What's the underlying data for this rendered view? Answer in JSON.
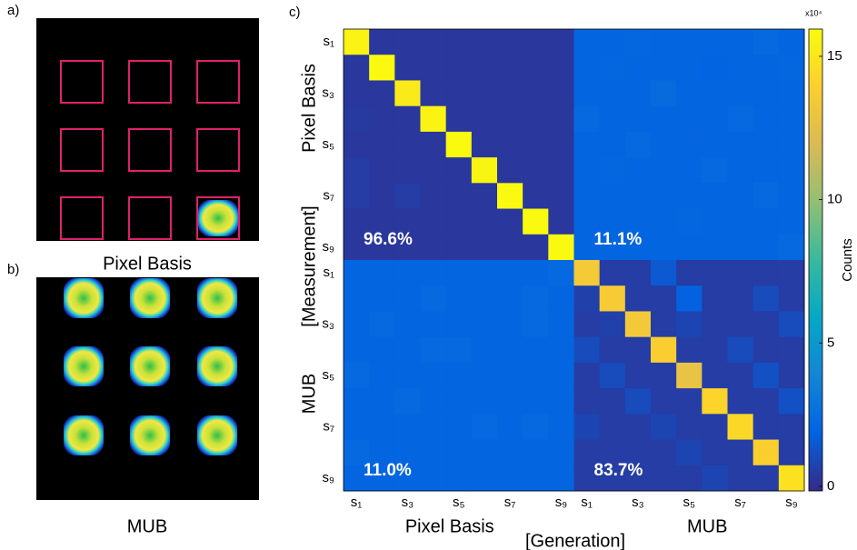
{
  "panel_a": {
    "label": "a)",
    "caption": "Pixel Basis"
  },
  "panel_b": {
    "label": "b)",
    "caption": "MUB"
  },
  "chart_data": {
    "type": "heatmap",
    "panel_label": "c)",
    "row_labels": [
      "s₁",
      null,
      "s₃",
      null,
      "s₅",
      null,
      "s₇",
      null,
      "s₉",
      "s₁",
      null,
      "s₃",
      null,
      "s₅",
      null,
      "s₇",
      null,
      "s₉"
    ],
    "col_labels": [
      "s₁",
      null,
      "s₃",
      null,
      "s₅",
      null,
      "s₇",
      null,
      "s₉",
      "s₁",
      null,
      "s₃",
      null,
      "s₅",
      null,
      "s₇",
      null,
      "s₉"
    ],
    "row_groups": [
      "Pixel Basis",
      "MUB"
    ],
    "col_groups": [
      "Pixel Basis",
      "MUB"
    ],
    "y_label": "[Measurement]",
    "x_label": "[Generation]",
    "annotations": [
      "96.6%",
      "11.1%",
      "11.0%",
      "83.7%"
    ],
    "colorbar_label": "Counts",
    "colorbar_multiplier": "x10⁴",
    "colormap": "parula",
    "zlim": [
      -0.16,
      15.95
    ],
    "zticks": [
      0,
      5,
      10,
      15
    ],
    "z": [
      [
        15.6,
        0.3,
        0.3,
        0.3,
        0.3,
        0.3,
        0.3,
        0.3,
        0.3,
        2.0,
        2.0,
        2.1,
        2.0,
        2.0,
        2.0,
        2.0,
        2.2,
        2.0
      ],
      [
        0.3,
        15.9,
        0.3,
        0.3,
        0.3,
        0.3,
        0.3,
        0.3,
        0.3,
        2.0,
        2.1,
        2.0,
        2.0,
        2.0,
        1.9,
        2.0,
        2.0,
        2.1
      ],
      [
        0.3,
        0.3,
        15.2,
        0.3,
        0.3,
        0.3,
        0.3,
        0.3,
        0.3,
        2.0,
        2.0,
        2.0,
        2.3,
        2.0,
        2.0,
        2.0,
        2.0,
        2.0
      ],
      [
        0.4,
        0.3,
        0.3,
        15.6,
        0.3,
        0.3,
        0.3,
        0.3,
        0.3,
        2.2,
        2.0,
        2.0,
        2.0,
        2.0,
        2.0,
        2.2,
        2.0,
        2.0
      ],
      [
        0.3,
        0.3,
        0.3,
        0.3,
        15.9,
        0.3,
        0.3,
        0.3,
        0.3,
        2.0,
        2.0,
        2.2,
        2.0,
        2.0,
        2.0,
        2.0,
        2.0,
        2.0
      ],
      [
        0.5,
        0.3,
        0.3,
        0.3,
        0.3,
        15.7,
        0.3,
        0.3,
        0.3,
        2.0,
        2.1,
        2.0,
        2.0,
        2.0,
        2.2,
        2.0,
        2.0,
        2.0
      ],
      [
        0.5,
        0.3,
        0.5,
        0.3,
        0.3,
        0.3,
        15.9,
        0.3,
        0.3,
        2.0,
        2.0,
        2.0,
        2.0,
        2.0,
        2.0,
        2.0,
        2.2,
        2.0
      ],
      [
        0.3,
        0.3,
        0.3,
        0.3,
        0.3,
        0.3,
        0.3,
        15.9,
        0.3,
        2.0,
        2.0,
        2.0,
        2.0,
        2.1,
        2.0,
        2.0,
        2.0,
        2.0
      ],
      [
        0.3,
        0.3,
        0.3,
        0.3,
        0.3,
        0.3,
        0.3,
        0.3,
        15.9,
        2.0,
        2.0,
        2.0,
        2.0,
        2.0,
        2.0,
        2.0,
        2.0,
        2.2
      ],
      [
        2.0,
        2.0,
        2.0,
        2.0,
        2.0,
        2.0,
        2.0,
        2.0,
        2.2,
        13.5,
        0.5,
        0.5,
        1.5,
        0.5,
        0.5,
        0.5,
        0.5,
        0.5
      ],
      [
        2.0,
        2.0,
        2.0,
        2.2,
        2.0,
        2.0,
        2.0,
        2.2,
        2.0,
        0.6,
        13.6,
        0.5,
        0.5,
        1.8,
        0.5,
        0.5,
        1.0,
        0.5
      ],
      [
        2.0,
        2.2,
        2.0,
        2.0,
        2.0,
        2.0,
        2.0,
        2.2,
        2.0,
        0.5,
        0.6,
        13.4,
        0.5,
        0.8,
        0.5,
        0.5,
        0.5,
        1.0
      ],
      [
        2.0,
        2.0,
        2.0,
        2.2,
        2.2,
        2.0,
        2.0,
        2.0,
        2.0,
        1.0,
        0.5,
        0.5,
        13.8,
        0.5,
        0.5,
        1.0,
        0.5,
        0.5
      ],
      [
        2.2,
        2.0,
        2.0,
        2.0,
        2.0,
        2.0,
        2.0,
        2.0,
        2.0,
        0.5,
        1.0,
        0.5,
        0.5,
        12.8,
        0.5,
        0.5,
        1.2,
        0.5
      ],
      [
        2.0,
        2.0,
        2.2,
        2.0,
        2.0,
        2.0,
        2.0,
        2.0,
        2.0,
        0.5,
        0.5,
        1.0,
        0.5,
        0.5,
        14.2,
        0.5,
        0.5,
        1.2
      ],
      [
        2.0,
        2.0,
        2.0,
        2.0,
        2.0,
        2.2,
        2.0,
        2.2,
        2.0,
        0.8,
        0.5,
        0.5,
        0.8,
        0.5,
        0.5,
        14.4,
        0.5,
        0.5
      ],
      [
        2.2,
        2.0,
        2.0,
        2.0,
        2.0,
        2.0,
        2.0,
        2.0,
        2.0,
        0.5,
        0.5,
        0.5,
        0.5,
        0.8,
        0.5,
        0.5,
        13.9,
        0.5
      ],
      [
        2.0,
        2.0,
        2.0,
        2.0,
        2.0,
        2.0,
        2.0,
        2.0,
        2.0,
        0.5,
        0.5,
        0.5,
        0.5,
        0.5,
        0.8,
        0.5,
        0.5,
        14.8
      ]
    ]
  }
}
